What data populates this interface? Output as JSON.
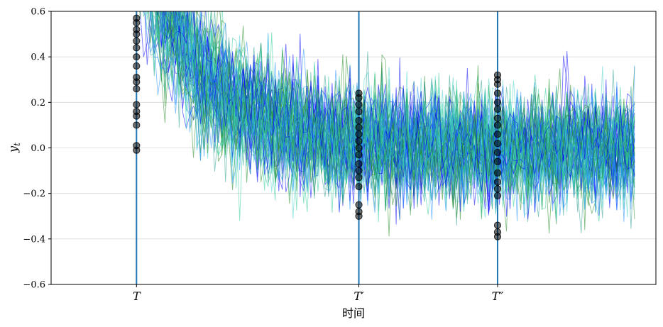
{
  "chart_data": {
    "type": "line",
    "xlabel": "时间",
    "ylabel": "y",
    "ylabel_subscript": "t",
    "ylim": [
      -0.6,
      0.6
    ],
    "yticks": [
      "-0.6",
      "-0.4",
      "-0.2",
      "0.0",
      "0.2",
      "0.4",
      "0.6"
    ],
    "ytick_values": [
      -0.6,
      -0.4,
      -0.2,
      0.0,
      0.2,
      0.4,
      0.6
    ],
    "xlim": [
      -24,
      146
    ],
    "x_range": [
      0,
      140
    ],
    "grid": "horizontal",
    "legend": "none",
    "series_count": 75,
    "series_colors": [
      "#0000ff",
      "#2a9d8f",
      "#2ecc9a",
      "#1e90ff",
      "#48d1cc",
      "#228b22"
    ],
    "trend": "exponential decay from about 0.9 at t=0 toward 0, noise sd about 0.12",
    "vlines": [
      {
        "x": 0,
        "label": "T",
        "color": "#1f77b4",
        "points": [
          0.01,
          -0.01,
          0.1,
          0.14,
          0.16,
          0.19,
          0.26,
          0.29,
          0.31,
          0.36,
          0.4,
          0.44,
          0.47,
          0.5,
          0.52,
          0.55,
          0.57
        ]
      },
      {
        "x": 62.5,
        "label": "T′",
        "color": "#1f77b4",
        "points": [
          -0.3,
          -0.28,
          -0.25,
          -0.17,
          -0.13,
          -0.1,
          -0.07,
          -0.03,
          0.0,
          0.03,
          0.06,
          0.09,
          0.12,
          0.16,
          0.19,
          0.22,
          0.24
        ]
      },
      {
        "x": 101.5,
        "label": "T″",
        "color": "#1f77b4",
        "points": [
          -0.39,
          -0.37,
          -0.34,
          -0.21,
          -0.18,
          -0.15,
          -0.11,
          -0.06,
          -0.02,
          0.02,
          0.06,
          0.1,
          0.13,
          0.17,
          0.2,
          0.24,
          0.28,
          0.3,
          0.32
        ]
      }
    ]
  }
}
